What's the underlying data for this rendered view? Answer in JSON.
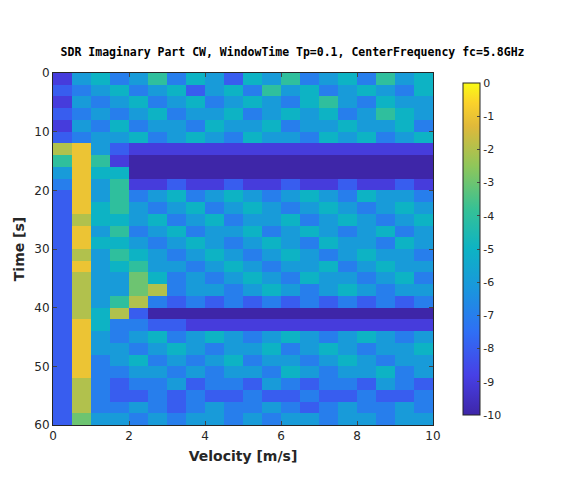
{
  "chart_data": {
    "type": "heatmap",
    "title": "SDR Imaginary Part CW, WindowTime Tp=0.1, CenterFrequency fc=5.8GHz",
    "x_label": "Velocity [m/s]",
    "y_label": "Time [s]",
    "xlim": [
      0,
      10
    ],
    "xticks": [
      0,
      2,
      4,
      6,
      8,
      10
    ],
    "ylim": [
      60,
      0
    ],
    "yticks": [
      0,
      10,
      20,
      30,
      40,
      50,
      60
    ],
    "zlim": [
      -10,
      0
    ],
    "zticks": [
      0,
      -1,
      -2,
      -3,
      -4,
      -5,
      -6,
      -7,
      -8,
      -9,
      -10
    ],
    "x": [
      0.25,
      0.75,
      1.25,
      1.75,
      2.25,
      2.75,
      3.25,
      3.75,
      4.25,
      4.75,
      5.25,
      5.75,
      6.25,
      6.75,
      7.25,
      7.75,
      8.25,
      8.75,
      9.25,
      9.75
    ],
    "y": [
      1,
      3,
      5,
      7,
      9,
      11,
      13,
      15,
      17,
      19,
      21,
      23,
      25,
      27,
      29,
      31,
      33,
      35,
      37,
      39,
      41,
      43,
      45,
      47,
      49,
      51,
      53,
      55,
      57,
      59
    ],
    "z": [
      [
        -9,
        -6,
        -5,
        -7,
        -6,
        -4,
        -7,
        -5,
        -6,
        -8,
        -5,
        -6,
        -4,
        -7,
        -6,
        -5,
        -7,
        -4,
        -6,
        -5
      ],
      [
        -8,
        -7,
        -6,
        -5,
        -7,
        -6,
        -5,
        -8,
        -6,
        -5,
        -7,
        -4,
        -6,
        -5,
        -7,
        -6,
        -5,
        -6,
        -7,
        -5
      ],
      [
        -9,
        -6,
        -7,
        -6,
        -5,
        -7,
        -6,
        -5,
        -7,
        -6,
        -5,
        -6,
        -7,
        -5,
        -4,
        -6,
        -7,
        -5,
        -6,
        -6
      ],
      [
        -8,
        -7,
        -6,
        -7,
        -6,
        -5,
        -7,
        -6,
        -6,
        -5,
        -7,
        -6,
        -5,
        -6,
        -5,
        -7,
        -6,
        -4,
        -5,
        -6
      ],
      [
        -9,
        -6,
        -7,
        -5,
        -7,
        -6,
        -6,
        -7,
        -5,
        -6,
        -6,
        -5,
        -7,
        -6,
        -6,
        -5,
        -6,
        -6,
        -5,
        -7
      ],
      [
        -8,
        -7,
        -6,
        -6,
        -5,
        -7,
        -6,
        -5,
        -6,
        -7,
        -5,
        -6,
        -6,
        -7,
        -5,
        -6,
        -5,
        -7,
        -6,
        -5
      ],
      [
        -2,
        -1,
        -6,
        -8,
        -9,
        -9,
        -9,
        -9,
        -9,
        -9,
        -9,
        -9,
        -9,
        -9,
        -9,
        -9,
        -9,
        -9,
        -9,
        -9
      ],
      [
        -4,
        -1,
        -4,
        -9,
        -10,
        -10,
        -10,
        -10,
        -10,
        -10,
        -10,
        -10,
        -10,
        -10,
        -10,
        -10,
        -10,
        -10,
        -10,
        -10
      ],
      [
        -6,
        -1,
        -5,
        -5,
        -10,
        -10,
        -10,
        -10,
        -10,
        -10,
        -10,
        -10,
        -10,
        -10,
        -10,
        -10,
        -10,
        -10,
        -10,
        -10
      ],
      [
        -7,
        -1,
        -6,
        -4,
        -9,
        -9,
        -8,
        -9,
        -9,
        -8,
        -9,
        -9,
        -8,
        -9,
        -9,
        -8,
        -9,
        -9,
        -8,
        -9
      ],
      [
        -8,
        -1,
        -6,
        -4,
        -7,
        -6,
        -5,
        -7,
        -6,
        -5,
        -6,
        -7,
        -6,
        -5,
        -6,
        -7,
        -5,
        -6,
        -6,
        -7
      ],
      [
        -8,
        -1,
        -5,
        -4,
        -6,
        -7,
        -6,
        -5,
        -7,
        -6,
        -5,
        -6,
        -7,
        -6,
        -5,
        -6,
        -7,
        -6,
        -5,
        -6
      ],
      [
        -8,
        -2,
        -5,
        -5,
        -6,
        -5,
        -7,
        -6,
        -5,
        -7,
        -6,
        -6,
        -5,
        -7,
        -6,
        -5,
        -6,
        -7,
        -6,
        -5
      ],
      [
        -8,
        -1,
        -6,
        -4,
        -7,
        -6,
        -5,
        -7,
        -6,
        -6,
        -5,
        -7,
        -6,
        -5,
        -6,
        -7,
        -6,
        -5,
        -7,
        -6
      ],
      [
        -8,
        -1,
        -5,
        -5,
        -6,
        -7,
        -6,
        -5,
        -6,
        -7,
        -6,
        -5,
        -6,
        -7,
        -5,
        -6,
        -6,
        -7,
        -5,
        -6
      ],
      [
        -8,
        -2,
        -6,
        -4,
        -5,
        -6,
        -7,
        -6,
        -5,
        -6,
        -7,
        -6,
        -5,
        -6,
        -7,
        -6,
        -5,
        -6,
        -6,
        -7
      ],
      [
        -8,
        -1,
        -6,
        -5,
        -4,
        -6,
        -6,
        -7,
        -6,
        -5,
        -6,
        -7,
        -6,
        -6,
        -5,
        -7,
        -6,
        -5,
        -6,
        -6
      ],
      [
        -8,
        -2,
        -6,
        -6,
        -3,
        -5,
        -7,
        -6,
        -7,
        -6,
        -5,
        -6,
        -7,
        -5,
        -6,
        -6,
        -7,
        -6,
        -5,
        -7
      ],
      [
        -8,
        -2,
        -6,
        -6,
        -3,
        -2,
        -7,
        -6,
        -6,
        -7,
        -6,
        -5,
        -6,
        -7,
        -6,
        -5,
        -6,
        -7,
        -6,
        -6
      ],
      [
        -8,
        -2,
        -6,
        -4,
        -2,
        -7,
        -8,
        -7,
        -8,
        -7,
        -8,
        -7,
        -8,
        -7,
        -8,
        -7,
        -8,
        -7,
        -8,
        -7
      ],
      [
        -8,
        -2,
        -5,
        -2,
        -8,
        -10,
        -10,
        -10,
        -10,
        -10,
        -10,
        -10,
        -10,
        -10,
        -10,
        -10,
        -10,
        -10,
        -10,
        -10
      ],
      [
        -8,
        -1,
        -5,
        -7,
        -7,
        -8,
        -8,
        -9,
        -9,
        -9,
        -9,
        -9,
        -9,
        -9,
        -9,
        -9,
        -9,
        -9,
        -9,
        -9
      ],
      [
        -8,
        -1,
        -6,
        -7,
        -6,
        -5,
        -7,
        -6,
        -5,
        -6,
        -7,
        -6,
        -5,
        -6,
        -7,
        -6,
        -5,
        -6,
        -7,
        -6
      ],
      [
        -8,
        -1,
        -6,
        -6,
        -7,
        -6,
        -5,
        -6,
        -7,
        -6,
        -6,
        -5,
        -7,
        -6,
        -5,
        -6,
        -7,
        -6,
        -6,
        -5
      ],
      [
        -8,
        -1,
        -7,
        -6,
        -5,
        -7,
        -6,
        -7,
        -6,
        -5,
        -7,
        -6,
        -6,
        -7,
        -6,
        -5,
        -6,
        -7,
        -6,
        -6
      ],
      [
        -8,
        -1,
        -7,
        -7,
        -6,
        -6,
        -7,
        -6,
        -7,
        -6,
        -6,
        -7,
        -5,
        -6,
        -7,
        -6,
        -6,
        -5,
        -7,
        -6
      ],
      [
        -8,
        -2,
        -7,
        -8,
        -7,
        -7,
        -6,
        -8,
        -7,
        -7,
        -8,
        -6,
        -7,
        -8,
        -7,
        -7,
        -8,
        -6,
        -7,
        -8
      ],
      [
        -8,
        -2,
        -7,
        -8,
        -8,
        -7,
        -8,
        -7,
        -8,
        -8,
        -7,
        -8,
        -8,
        -7,
        -8,
        -8,
        -7,
        -8,
        -8,
        -7
      ],
      [
        -8,
        -2,
        -7,
        -7,
        -6,
        -7,
        -8,
        -7,
        -6,
        -7,
        -7,
        -6,
        -7,
        -8,
        -7,
        -6,
        -7,
        -7,
        -6,
        -7
      ],
      [
        -8,
        -3,
        -6,
        -6,
        -7,
        -6,
        -7,
        -6,
        -6,
        -7,
        -6,
        -7,
        -6,
        -6,
        -7,
        -6,
        -6,
        -7,
        -6,
        -6
      ]
    ]
  }
}
